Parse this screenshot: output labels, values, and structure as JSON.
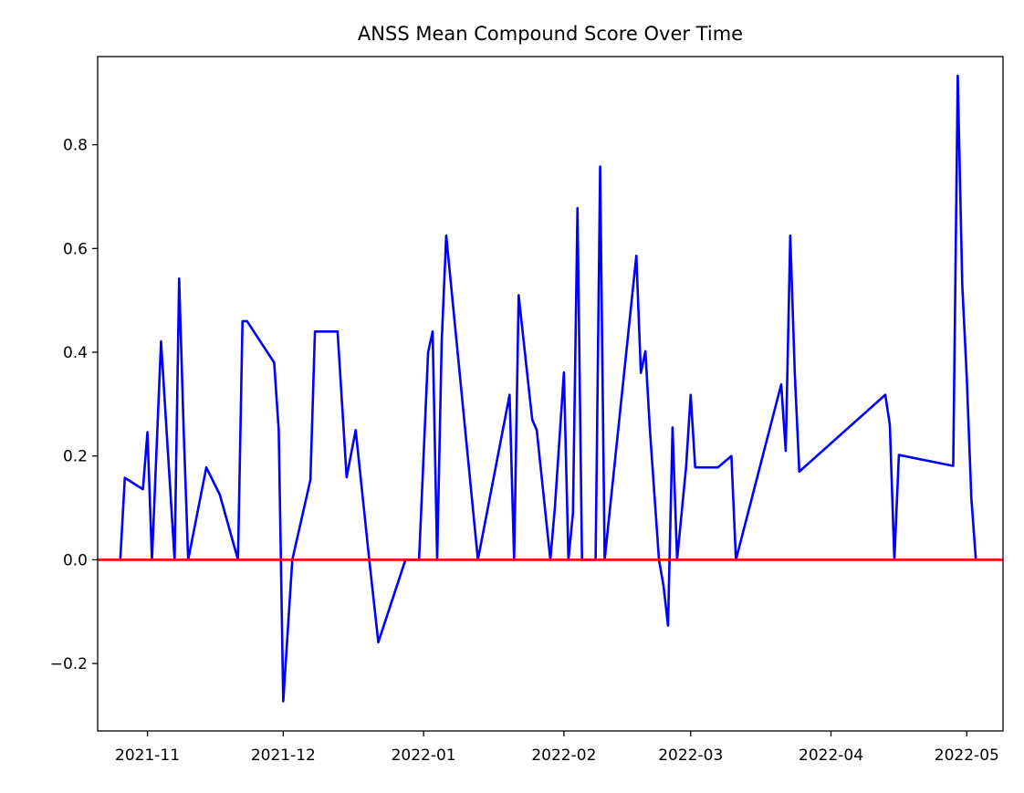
{
  "chart_data": {
    "type": "line",
    "title": "ANSS Mean Compound Score Over Time",
    "xlabel": "",
    "ylabel": "",
    "x_axis_type": "date",
    "xlim": [
      "2021-10-21",
      "2022-05-09"
    ],
    "ylim": [
      -0.33,
      0.97
    ],
    "x_ticks": [
      "2021-11-01",
      "2021-12-01",
      "2022-01-01",
      "2022-02-01",
      "2022-03-01",
      "2022-04-01",
      "2022-05-01"
    ],
    "x_tick_labels": [
      "2021-11",
      "2021-12",
      "2022-01",
      "2022-02",
      "2022-03",
      "2022-04",
      "2022-05"
    ],
    "y_ticks": [
      -0.2,
      0.0,
      0.2,
      0.4,
      0.6,
      0.8
    ],
    "y_tick_labels": [
      "−0.2",
      "0.0",
      "0.2",
      "0.4",
      "0.6",
      "0.8"
    ],
    "grid": false,
    "legend": "none",
    "series": [
      {
        "color": "#0000ff",
        "points": [
          [
            "2021-10-26",
            0.0
          ],
          [
            "2021-10-27",
            0.158
          ],
          [
            "2021-10-31",
            0.136
          ],
          [
            "2021-11-01",
            0.246
          ],
          [
            "2021-11-02",
            0.0
          ],
          [
            "2021-11-04",
            0.421
          ],
          [
            "2021-11-07",
            0.0
          ],
          [
            "2021-11-08",
            0.542
          ],
          [
            "2021-11-09",
            0.25
          ],
          [
            "2021-11-10",
            0.0
          ],
          [
            "2021-11-14",
            0.178
          ],
          [
            "2021-11-17",
            0.125
          ],
          [
            "2021-11-21",
            0.0
          ],
          [
            "2021-11-22",
            0.46
          ],
          [
            "2021-11-23",
            0.46
          ],
          [
            "2021-11-29",
            0.38
          ],
          [
            "2021-11-30",
            0.25
          ],
          [
            "2021-12-01",
            -0.273
          ],
          [
            "2021-12-03",
            0.0
          ],
          [
            "2021-12-07",
            0.154
          ],
          [
            "2021-12-08",
            0.44
          ],
          [
            "2021-12-13",
            0.44
          ],
          [
            "2021-12-15",
            0.159
          ],
          [
            "2021-12-17",
            0.25
          ],
          [
            "2021-12-20",
            0.0
          ],
          [
            "2021-12-22",
            -0.159
          ],
          [
            "2021-12-28",
            0.0
          ],
          [
            "2021-12-31",
            0.0
          ],
          [
            "2022-01-02",
            0.4
          ],
          [
            "2022-01-03",
            0.44
          ],
          [
            "2022-01-04",
            0.0
          ],
          [
            "2022-01-05",
            0.42
          ],
          [
            "2022-01-06",
            0.625
          ],
          [
            "2022-01-13",
            0.0
          ],
          [
            "2022-01-20",
            0.318
          ],
          [
            "2022-01-21",
            0.0
          ],
          [
            "2022-01-22",
            0.51
          ],
          [
            "2022-01-25",
            0.27
          ],
          [
            "2022-01-26",
            0.25
          ],
          [
            "2022-01-29",
            0.0
          ],
          [
            "2022-01-30",
            0.1
          ],
          [
            "2022-02-01",
            0.361
          ],
          [
            "2022-02-02",
            0.0
          ],
          [
            "2022-02-03",
            0.09
          ],
          [
            "2022-02-04",
            0.678
          ],
          [
            "2022-02-05",
            0.0
          ],
          [
            "2022-02-08",
            0.0
          ],
          [
            "2022-02-09",
            0.758
          ],
          [
            "2022-02-10",
            0.0
          ],
          [
            "2022-02-17",
            0.586
          ],
          [
            "2022-02-18",
            0.36
          ],
          [
            "2022-02-19",
            0.402
          ],
          [
            "2022-02-20",
            0.25
          ],
          [
            "2022-02-22",
            0.0
          ],
          [
            "2022-02-23",
            -0.05
          ],
          [
            "2022-02-24",
            -0.127
          ],
          [
            "2022-02-25",
            0.255
          ],
          [
            "2022-02-26",
            0.0
          ],
          [
            "2022-02-28",
            0.18
          ],
          [
            "2022-03-01",
            0.318
          ],
          [
            "2022-03-02",
            0.178
          ],
          [
            "2022-03-07",
            0.178
          ],
          [
            "2022-03-10",
            0.2
          ],
          [
            "2022-03-11",
            0.0
          ],
          [
            "2022-03-21",
            0.338
          ],
          [
            "2022-03-22",
            0.21
          ],
          [
            "2022-03-23",
            0.625
          ],
          [
            "2022-03-24",
            0.36
          ],
          [
            "2022-03-25",
            0.17
          ],
          [
            "2022-04-13",
            0.318
          ],
          [
            "2022-04-14",
            0.26
          ],
          [
            "2022-04-15",
            0.0
          ],
          [
            "2022-04-16",
            0.202
          ],
          [
            "2022-04-28",
            0.181
          ],
          [
            "2022-04-29",
            0.933
          ],
          [
            "2022-04-30",
            0.53
          ],
          [
            "2022-05-01",
            0.35
          ],
          [
            "2022-05-02",
            0.12
          ],
          [
            "2022-05-03",
            0.0
          ]
        ]
      }
    ],
    "reference_line": {
      "y": 0.0,
      "color": "#ff0000"
    }
  }
}
